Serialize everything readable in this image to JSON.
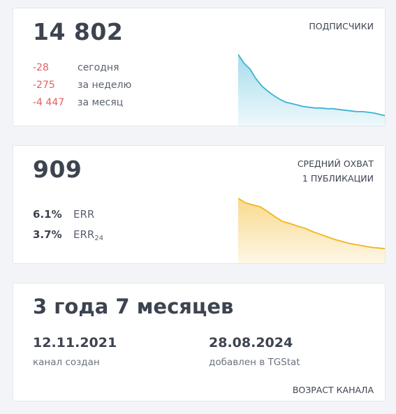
{
  "subscribers": {
    "count": "14 802",
    "label": "ПОДПИСЧИКИ",
    "stats": [
      {
        "value": "-28",
        "label": "сегодня"
      },
      {
        "value": "-275",
        "label": "за неделю"
      },
      {
        "value": "-4 447",
        "label": "за месяц"
      }
    ],
    "trend": [
      1.0,
      0.88,
      0.8,
      0.67,
      0.57,
      0.5,
      0.44,
      0.39,
      0.35,
      0.33,
      0.31,
      0.29,
      0.28,
      0.27,
      0.27,
      0.26,
      0.26,
      0.25,
      0.24,
      0.23,
      0.22,
      0.22,
      0.21,
      0.2,
      0.18,
      0.16
    ],
    "color": "#3bb3d3"
  },
  "reach": {
    "count": "909",
    "label_line1": "СРЕДНИЙ ОХВАТ",
    "label_line2": "1 ПУБЛИКАЦИИ",
    "err_value": "6.1%",
    "err_label": "ERR",
    "err24_value": "3.7%",
    "err24_label": "ERR",
    "err24_sub": "24",
    "trend": [
      1.0,
      0.93,
      0.9,
      0.87,
      0.8,
      0.72,
      0.65,
      0.62,
      0.58,
      0.55,
      0.5,
      0.46,
      0.42,
      0.38,
      0.35,
      0.32,
      0.3,
      0.28,
      0.26,
      0.25,
      0.24
    ],
    "color": "#f2b51c"
  },
  "age": {
    "title": "3 года 7 месяцев",
    "created_date": "12.11.2021",
    "created_label": "канал создан",
    "added_date": "28.08.2024",
    "added_label": "добавлен в TGStat",
    "footer": "ВОЗРАСТ КАНАЛА"
  }
}
